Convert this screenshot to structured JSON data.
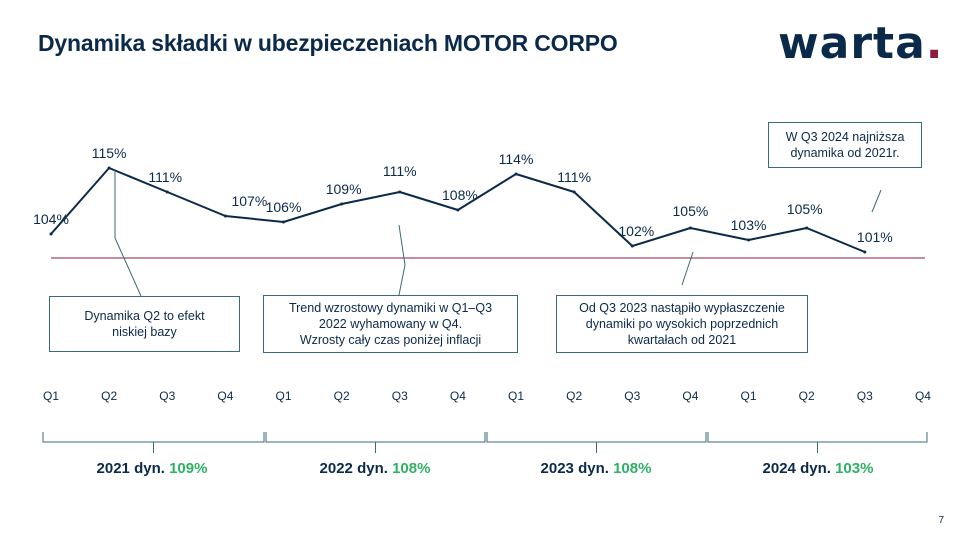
{
  "header": {
    "title": "Dynamika składki w ubezpieczeniach MOTOR CORPO",
    "logo_text": "warta",
    "logo_dot": "."
  },
  "page_number": "7",
  "colors": {
    "navy": "#0b2a4a",
    "reference_line": "#8b1d3b",
    "accent_green": "#2fb163",
    "callout_border": "#3b6a78"
  },
  "chart_data": {
    "type": "line",
    "categories": [
      "Q1",
      "Q2",
      "Q3",
      "Q4",
      "Q1",
      "Q2",
      "Q3",
      "Q4",
      "Q1",
      "Q2",
      "Q3",
      "Q4",
      "Q1",
      "Q2",
      "Q3",
      "Q4"
    ],
    "values": [
      104,
      115,
      111,
      107,
      106,
      109,
      111,
      108,
      114,
      111,
      102,
      105,
      103,
      105,
      101
    ],
    "labels": [
      "104%",
      "115%",
      "111%",
      "107%",
      "106%",
      "109%",
      "111%",
      "108%",
      "114%",
      "111%",
      "102%",
      "105%",
      "103%",
      "105%",
      "101%"
    ],
    "reference_value": 100,
    "year_groups": [
      {
        "label": "2021 dyn.",
        "value": "109%"
      },
      {
        "label": "2022 dyn.",
        "value": "108%"
      },
      {
        "label": "2023 dyn.",
        "value": "108%"
      },
      {
        "label": "2024 dyn.",
        "value": "103%"
      }
    ]
  },
  "callouts": {
    "box1": [
      "Dynamika Q2 to efekt",
      "niskiej bazy"
    ],
    "box2": [
      "Trend wzrostowy dynamiki w Q1–Q3",
      "2022 wyhamowany  w Q4.",
      "Wzrosty cały czas poniżej inflacji"
    ],
    "box3": [
      "Od Q3 2023 nastąpiło wypłaszczenie",
      "dynamiki po wysokich poprzednich",
      "kwartałach  od 2021"
    ],
    "box4": [
      "W Q3 2024 najniższa",
      "dynamika od 2021r."
    ]
  }
}
